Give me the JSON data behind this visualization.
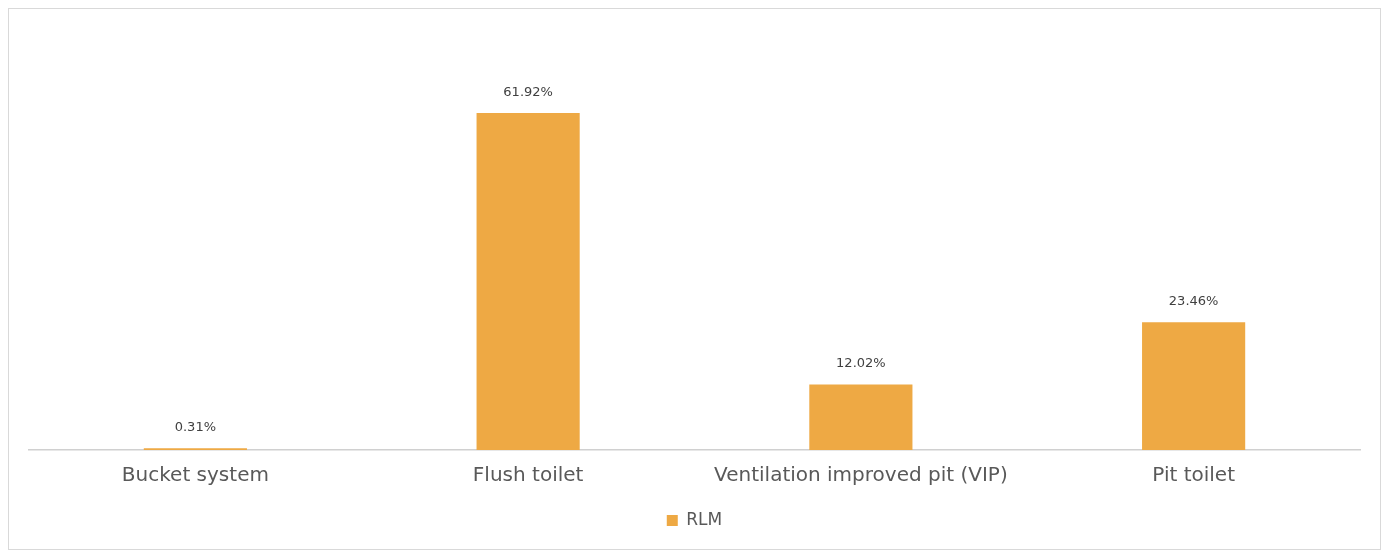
{
  "chart_data": {
    "type": "bar",
    "categories": [
      "Bucket system",
      "Flush toilet",
      "Ventilation improved pit (VIP)",
      "Pit toilet"
    ],
    "series": [
      {
        "name": "RLM",
        "color": "#eea944",
        "values": [
          0.31,
          61.92,
          12.02,
          23.46
        ],
        "value_labels": [
          "0.31%",
          "61.92%",
          "12.02%",
          "23.46%"
        ]
      }
    ],
    "grid": false,
    "legend": "bottom",
    "tick_labels": "x"
  }
}
